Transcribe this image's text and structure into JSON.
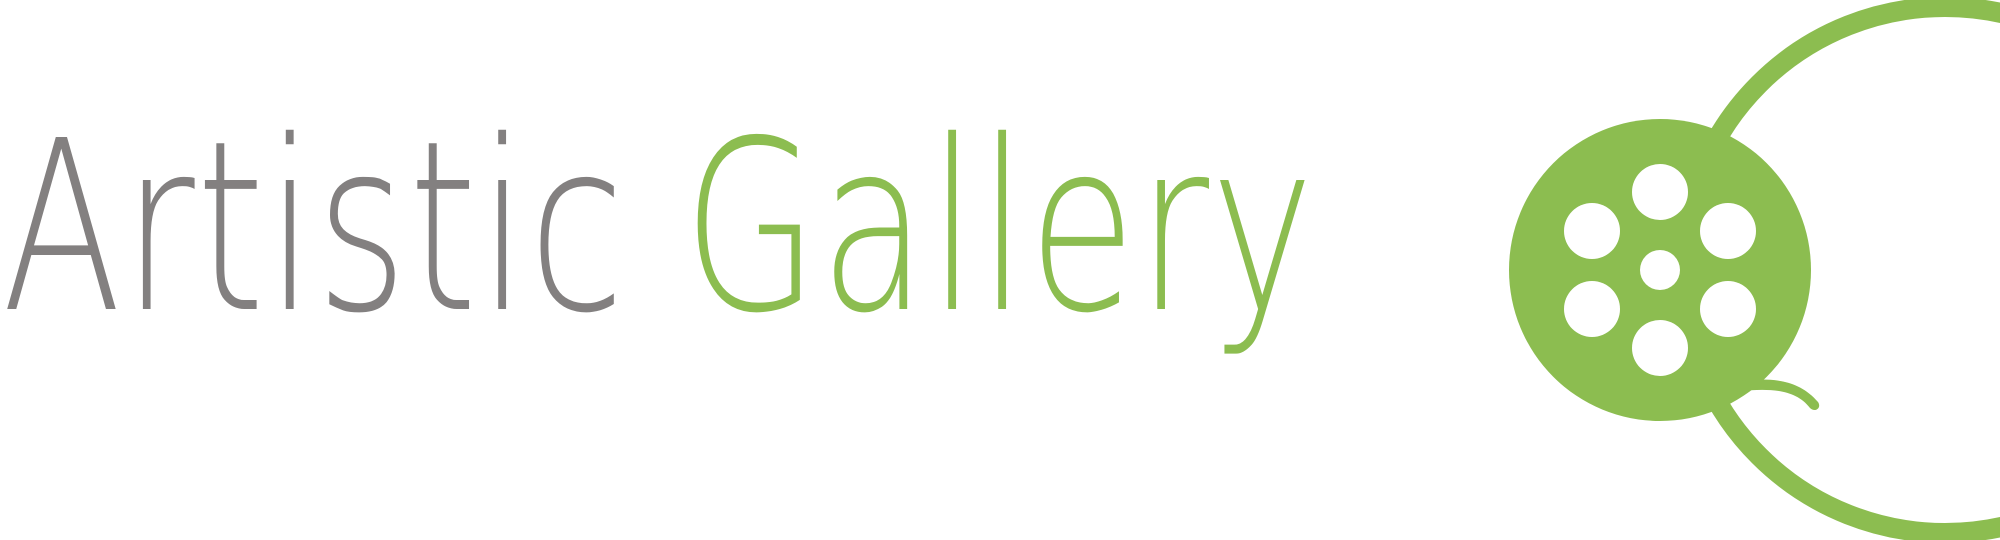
{
  "logo": {
    "word_primary": "Artistic",
    "word_accent": "Gallery",
    "emblem_icon": "film-reel-icon",
    "colors": {
      "primary_text": "#838080",
      "accent": "#8cbd50",
      "background": "#ffffff"
    }
  }
}
